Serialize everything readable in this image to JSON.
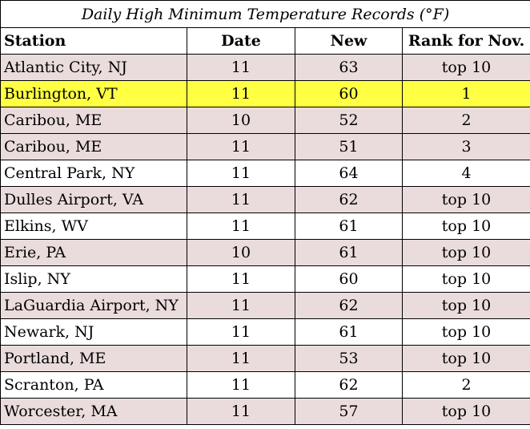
{
  "title": "Daily High Minimum Temperature Records (°F)",
  "columns": [
    "Station",
    "Date",
    "New",
    "Rank for Nov."
  ],
  "colors": {
    "shaded_row": "#eadcdc",
    "plain_row": "#ffffff",
    "highlight_row": "#ffff44"
  },
  "rows": [
    {
      "station": "Atlantic City, NJ",
      "date": "11",
      "new": "63",
      "rank": "top 10",
      "style": "shaded"
    },
    {
      "station": "Burlington, VT",
      "date": "11",
      "new": "60",
      "rank": "1",
      "style": "highlight"
    },
    {
      "station": "Caribou, ME",
      "date": "10",
      "new": "52",
      "rank": "2",
      "style": "shaded"
    },
    {
      "station": "Caribou, ME",
      "date": "11",
      "new": "51",
      "rank": "3",
      "style": "shaded"
    },
    {
      "station": "Central Park, NY",
      "date": "11",
      "new": "64",
      "rank": "4",
      "style": "plain"
    },
    {
      "station": "Dulles Airport, VA",
      "date": "11",
      "new": "62",
      "rank": "top 10",
      "style": "shaded"
    },
    {
      "station": "Elkins, WV",
      "date": "11",
      "new": "61",
      "rank": "top 10",
      "style": "plain"
    },
    {
      "station": "Erie, PA",
      "date": "10",
      "new": "61",
      "rank": "top 10",
      "style": "shaded"
    },
    {
      "station": "Islip, NY",
      "date": "11",
      "new": "60",
      "rank": "top 10",
      "style": "plain"
    },
    {
      "station": "LaGuardia Airport, NY",
      "date": "11",
      "new": "62",
      "rank": "top 10",
      "style": "shaded"
    },
    {
      "station": "Newark, NJ",
      "date": "11",
      "new": "61",
      "rank": "top 10",
      "style": "plain"
    },
    {
      "station": "Portland, ME",
      "date": "11",
      "new": "53",
      "rank": "top 10",
      "style": "shaded"
    },
    {
      "station": "Scranton, PA",
      "date": "11",
      "new": "62",
      "rank": "2",
      "style": "plain"
    },
    {
      "station": "Worcester, MA",
      "date": "11",
      "new": "57",
      "rank": "top 10",
      "style": "shaded"
    }
  ]
}
